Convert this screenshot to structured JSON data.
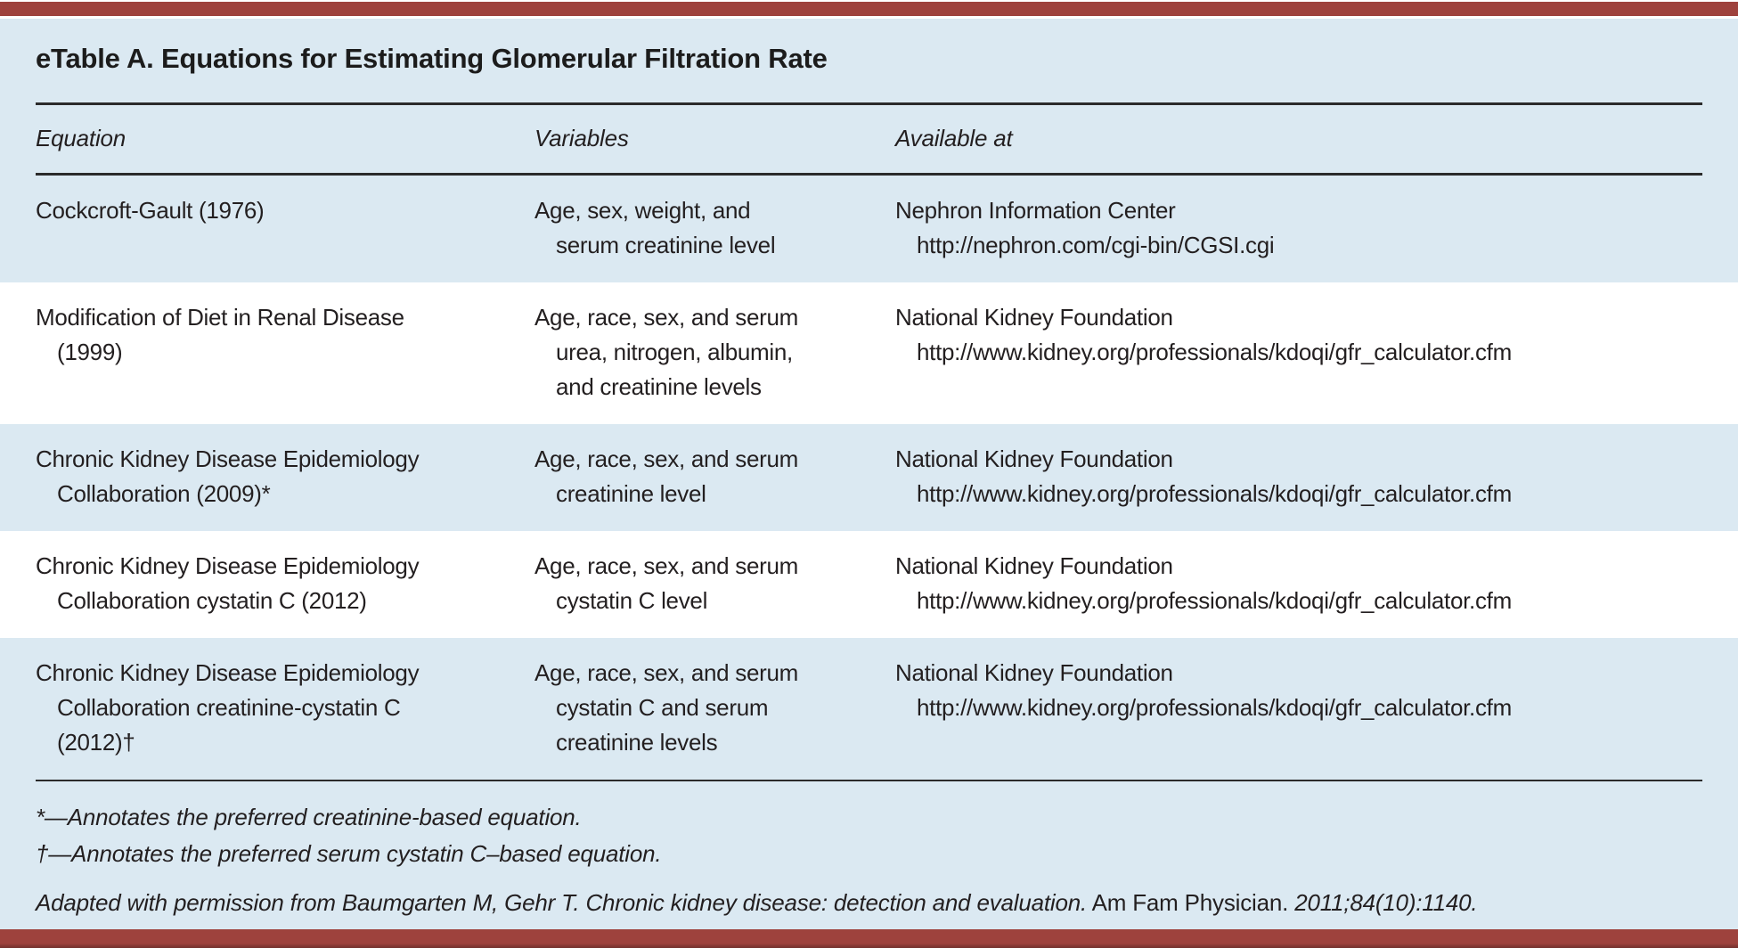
{
  "colors": {
    "accent_bar": "#9e423d",
    "panel_bg": "#dbe9f2",
    "row_stripe_bg": "#ffffff",
    "rule": "#2b2b2b",
    "text": "#231f20"
  },
  "title": "eTable A. Equations for Estimating Glomerular Filtration Rate",
  "table": {
    "columns": [
      "Equation",
      "Variables",
      "Available at"
    ],
    "rows": [
      {
        "shaded": true,
        "equation": [
          "Cockcroft-Gault (1976)"
        ],
        "variables": [
          "Age, sex, weight, and",
          "serum creatinine level"
        ],
        "available": [
          "Nephron Information Center",
          "http://nephron.com/cgi-bin/CGSI.cgi"
        ]
      },
      {
        "shaded": false,
        "equation": [
          "Modification of Diet in Renal Disease",
          "(1999)"
        ],
        "variables": [
          "Age, race, sex, and serum",
          "urea, nitrogen, albumin,",
          "and creatinine levels"
        ],
        "available": [
          "National Kidney Foundation",
          "http://www.kidney.org/professionals/kdoqi/gfr_calculator.cfm"
        ]
      },
      {
        "shaded": true,
        "equation": [
          "Chronic Kidney Disease Epidemiology",
          "Collaboration (2009)*"
        ],
        "variables": [
          "Age, race, sex, and serum",
          "creatinine level"
        ],
        "available": [
          "National Kidney Foundation",
          "http://www.kidney.org/professionals/kdoqi/gfr_calculator.cfm"
        ]
      },
      {
        "shaded": false,
        "equation": [
          "Chronic Kidney Disease Epidemiology",
          "Collaboration cystatin C (2012)"
        ],
        "variables": [
          "Age, race, sex, and serum",
          "cystatin C level"
        ],
        "available": [
          "National Kidney Foundation",
          "http://www.kidney.org/professionals/kdoqi/gfr_calculator.cfm"
        ]
      },
      {
        "shaded": true,
        "equation": [
          "Chronic Kidney Disease Epidemiology",
          "Collaboration creatinine-cystatin C",
          "(2012)†"
        ],
        "variables": [
          "Age, race, sex, and serum",
          "cystatin C and serum",
          "creatinine levels"
        ],
        "available": [
          "National Kidney Foundation",
          "http://www.kidney.org/professionals/kdoqi/gfr_calculator.cfm"
        ]
      }
    ]
  },
  "footnotes": [
    "*—Annotates the preferred creatinine-based equation.",
    "†—Annotates the preferred serum cystatin C–based equation."
  ],
  "attribution": {
    "italic_lead": "Adapted with permission from Baumgarten M, Gehr T. Chronic kidney disease: detection and evaluation.",
    "roman_mid": " Am Fam Physician. ",
    "italic_tail": "2011;84(10):1140."
  }
}
